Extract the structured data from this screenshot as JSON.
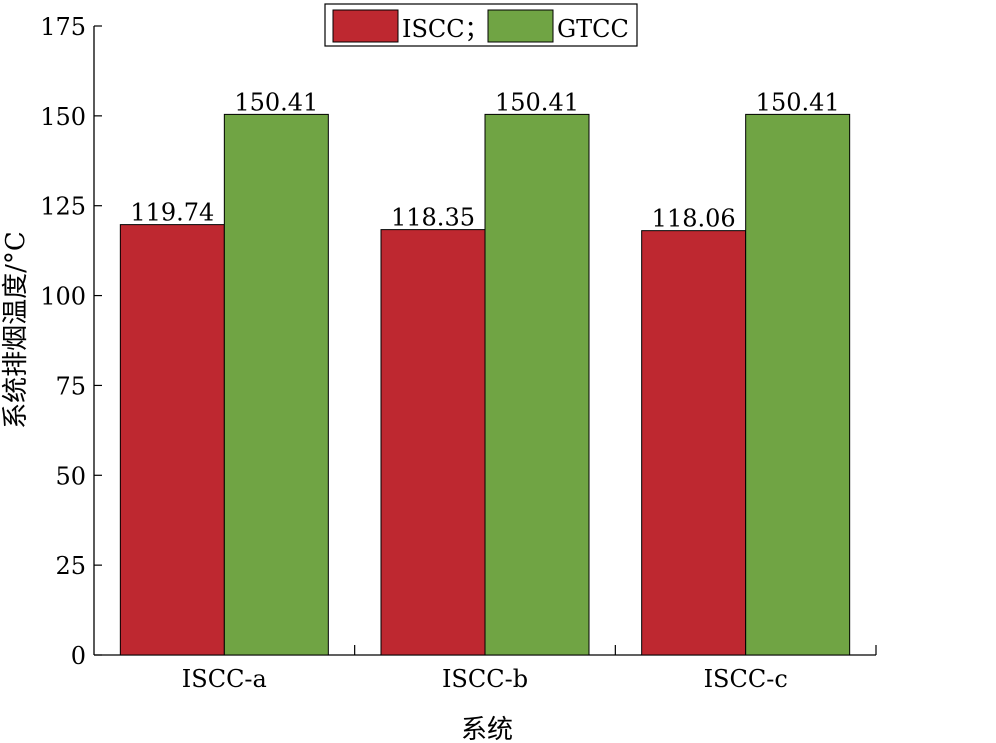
{
  "chart_data": {
    "type": "bar",
    "categories": [
      "ISCC-a",
      "ISCC-b",
      "ISCC-c"
    ],
    "series": [
      {
        "name": "ISCC；",
        "color": "#be2830",
        "values": [
          119.74,
          118.35,
          118.06
        ],
        "labels": [
          "119.74",
          "118.35",
          "118.06"
        ]
      },
      {
        "name": "GTCC",
        "color": "#70a444",
        "values": [
          150.41,
          150.41,
          150.41
        ],
        "labels": [
          "150.41",
          "150.41",
          "150.41"
        ]
      }
    ],
    "xlabel": "系统",
    "ylabel": "系统排烟温度/°C",
    "ylim": [
      0,
      175
    ],
    "yticks": [
      0,
      25,
      50,
      75,
      100,
      125,
      150,
      175
    ],
    "ytick_labels": [
      "0",
      "25",
      "50",
      "75",
      "100",
      "125",
      "150",
      "175"
    ],
    "grid": false,
    "legend_position": "top-center"
  }
}
